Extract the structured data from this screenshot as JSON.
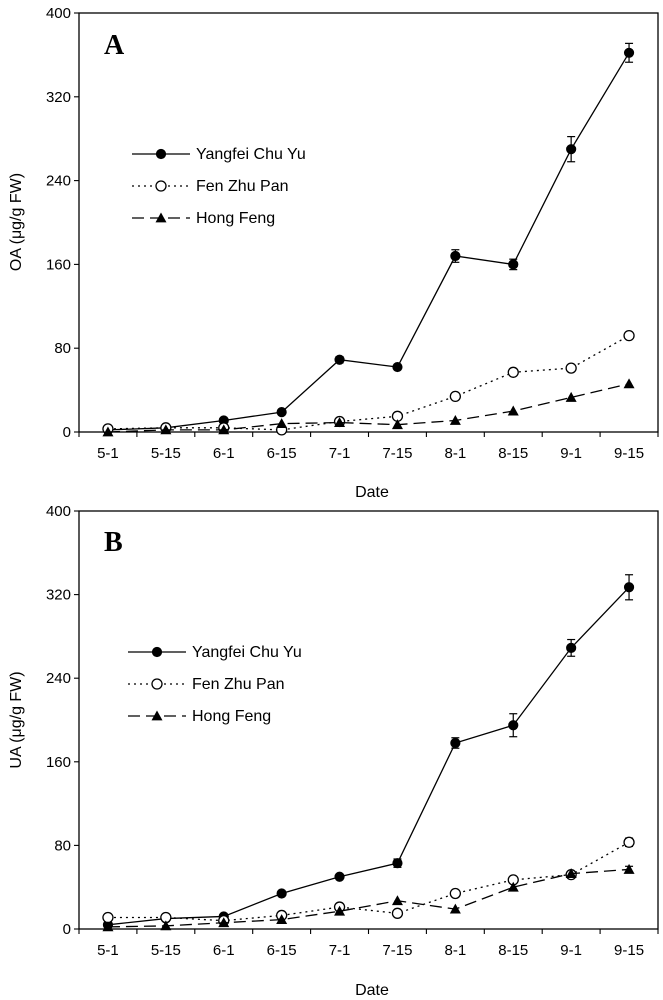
{
  "chart_data": [
    {
      "type": "line",
      "panel_label": "A",
      "xlabel": "Date",
      "ylabel": "OA (μg/g FW)",
      "ylim": [
        0,
        400
      ],
      "yticks": [
        "0",
        "80",
        "160",
        "240",
        "320",
        "400"
      ],
      "categories": [
        "5-1",
        "5-15",
        "6-1",
        "6-15",
        "7-1",
        "7-15",
        "8-1",
        "8-15",
        "9-1",
        "9-15"
      ],
      "legend_position": "upper-left",
      "series": [
        {
          "name": "Yangfei Chu Yu",
          "line": "solid",
          "marker": "filled-circle",
          "values": [
            2,
            4,
            11,
            19,
            69,
            62,
            168,
            160,
            270,
            362
          ],
          "errors": [
            0,
            0,
            0,
            0,
            3,
            2,
            6,
            5,
            12,
            9
          ]
        },
        {
          "name": "Fen Zhu Pan",
          "line": "dotted",
          "marker": "open-circle",
          "values": [
            3,
            4,
            4,
            2,
            10,
            15,
            34,
            57,
            61,
            92
          ],
          "errors": [
            0,
            0,
            0,
            0,
            0,
            0,
            0,
            0,
            0,
            3
          ]
        },
        {
          "name": "Hong Feng",
          "line": "dashed",
          "marker": "filled-triangle",
          "values": [
            0,
            2,
            2,
            8,
            9,
            7,
            11,
            20,
            33,
            46
          ],
          "errors": [
            0,
            0,
            0,
            0,
            0,
            0,
            0,
            0,
            0,
            0
          ]
        }
      ]
    },
    {
      "type": "line",
      "panel_label": "B",
      "xlabel": "Date",
      "ylabel": "UA (μg/g FW)",
      "ylim": [
        0,
        400
      ],
      "yticks": [
        "0",
        "80",
        "160",
        "240",
        "320",
        "400"
      ],
      "categories": [
        "5-1",
        "5-15",
        "6-1",
        "6-15",
        "7-1",
        "7-15",
        "8-1",
        "8-15",
        "9-1",
        "9-15"
      ],
      "legend_position": "upper-left",
      "series": [
        {
          "name": "Yangfei Chu Yu",
          "line": "solid",
          "marker": "filled-circle",
          "values": [
            4,
            10,
            12,
            34,
            50,
            63,
            178,
            195,
            269,
            327
          ],
          "errors": [
            0,
            0,
            0,
            0,
            0,
            4,
            5,
            11,
            8,
            12
          ]
        },
        {
          "name": "Fen Zhu Pan",
          "line": "dotted",
          "marker": "open-circle",
          "values": [
            11,
            11,
            8,
            13,
            21,
            15,
            34,
            47,
            52,
            83
          ],
          "errors": [
            0,
            0,
            0,
            0,
            0,
            0,
            0,
            0,
            0,
            4
          ]
        },
        {
          "name": "Hong Feng",
          "line": "dashed",
          "marker": "filled-triangle",
          "values": [
            2,
            3,
            6,
            9,
            17,
            27,
            19,
            40,
            53,
            57
          ],
          "errors": [
            0,
            0,
            0,
            0,
            0,
            0,
            0,
            0,
            0,
            3
          ]
        }
      ]
    }
  ]
}
